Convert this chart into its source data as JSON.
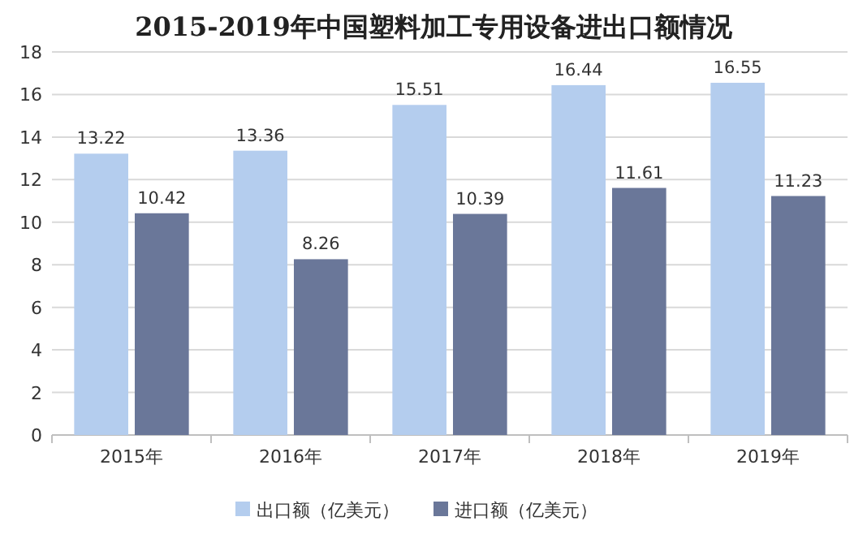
{
  "chart_data": {
    "type": "bar",
    "title": "2015-2019年中国塑料加工专用设备进出口额情况",
    "categories": [
      "2015年",
      "2016年",
      "2017年",
      "2018年",
      "2019年"
    ],
    "series": [
      {
        "name": "出口额（亿美元）",
        "color": "#b4cdee",
        "values": [
          13.22,
          13.36,
          15.51,
          16.44,
          16.55
        ]
      },
      {
        "name": "进口额（亿美元）",
        "color": "#6a7799",
        "values": [
          10.42,
          8.26,
          10.39,
          11.61,
          11.23
        ]
      }
    ],
    "ylim": [
      0,
      18
    ],
    "yticks": [
      0,
      2,
      4,
      6,
      8,
      10,
      12,
      14,
      16,
      18
    ],
    "grid": "y",
    "legend": "bottom",
    "data_labels": true
  }
}
